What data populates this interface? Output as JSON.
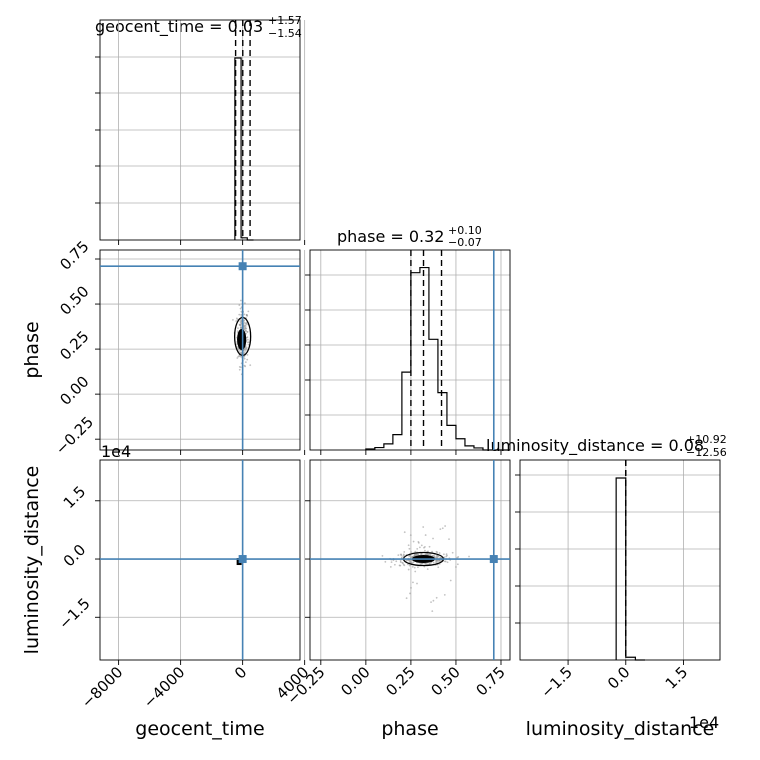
{
  "chart_data": {
    "type": "corner",
    "parameters": [
      "geocent_time",
      "phase",
      "luminosity_distance"
    ],
    "grid": true,
    "truth_color": "#4682b4",
    "truths": {
      "geocent_time": 0,
      "phase": 0.71,
      "luminosity_distance": 0
    },
    "diagonal": [
      {
        "parameter": "geocent_time",
        "title_name": "geocent_time = 0.03",
        "title_sup": "+1.57",
        "title_sub": "−1.54",
        "xlim": [
          -9200,
          3700
        ],
        "xticks": [
          -8000,
          -4000,
          0,
          4000
        ],
        "quantiles": [
          -1.51,
          0.03,
          1.6
        ],
        "hist_bins": [
          -500,
          -100,
          300,
          700
        ],
        "hist_counts": [
          1.0,
          0.012,
          0.0
        ]
      },
      {
        "parameter": "phase",
        "title_name": "phase = 0.32",
        "title_sup": "+0.10",
        "title_sub": "−0.07",
        "xlim": [
          -0.31,
          0.8
        ],
        "xticks": [
          -0.25,
          0.0,
          0.25,
          0.5,
          0.75
        ],
        "xticklabels": [
          "−0.25",
          "0.00",
          "0.25",
          "0.50",
          "0.75"
        ],
        "quantiles": [
          0.25,
          0.32,
          0.42
        ],
        "hist_bins": [
          0.0,
          0.05,
          0.1,
          0.15,
          0.2,
          0.25,
          0.3,
          0.35,
          0.4,
          0.45,
          0.5,
          0.55,
          0.6,
          0.65,
          0.7,
          0.75,
          0.8
        ],
        "hist_counts": [
          0.005,
          0.012,
          0.03,
          0.075,
          0.38,
          0.865,
          0.89,
          0.54,
          0.28,
          0.12,
          0.055,
          0.02,
          0.01,
          0.0,
          0.0,
          0.0
        ]
      },
      {
        "parameter": "luminosity_distance",
        "title_name": "luminosity_distance = 0.08",
        "title_sup": "+10.92",
        "title_sub": "−12.56",
        "xlim": [
          -2.75,
          2.45
        ],
        "xticks": [
          -1.5,
          0.0,
          1.5
        ],
        "xticklabels": [
          "−1.5",
          "0.0",
          "1.5"
        ],
        "offset_label": "1e4",
        "quantiles": [
          -0.0012,
          0.0,
          0.0011
        ],
        "hist_bins": [
          -0.25,
          0.0,
          0.25,
          0.5
        ],
        "hist_counts": [
          1.0,
          0.015,
          0.0
        ]
      }
    ],
    "panels_2d": [
      {
        "x": "geocent_time",
        "y": "phase",
        "ylim": [
          -0.31,
          0.8
        ],
        "yticks": [
          -0.25,
          0.0,
          0.25,
          0.5,
          0.75
        ],
        "yticklabels": [
          "−0.25",
          "0.00",
          "0.25",
          "0.50",
          "0.75"
        ]
      },
      {
        "x": "geocent_time",
        "y": "luminosity_distance",
        "ylim": [
          -2.6,
          2.55
        ],
        "yticks": [
          -1.5,
          0.0,
          1.5
        ],
        "yticklabels": [
          "−1.5",
          "0.0",
          "1.5"
        ],
        "offset_label": "1e4"
      },
      {
        "x": "phase",
        "y": "luminosity_distance"
      }
    ],
    "xlabels": [
      "geocent_time",
      "phase",
      "luminosity_distance"
    ],
    "ylabels": [
      "phase",
      "luminosity_distance"
    ],
    "xticklabels_geocent": [
      "−8000",
      "−4000",
      "0",
      "4000"
    ]
  }
}
